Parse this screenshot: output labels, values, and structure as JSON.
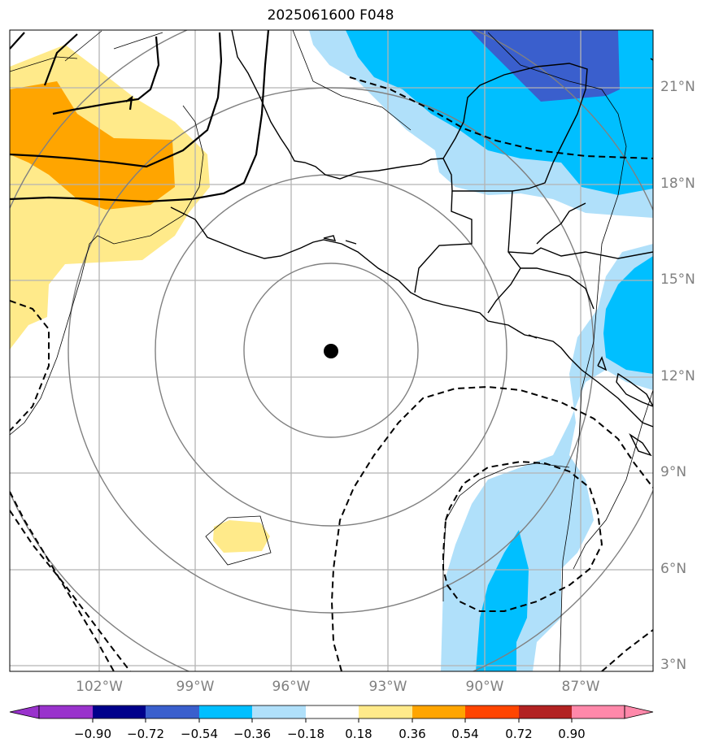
{
  "title": "2025061600 F048",
  "map": {
    "lat_labels": [
      "21°N",
      "18°N",
      "15°N",
      "12°N",
      "9°N",
      "6°N",
      "3°N"
    ],
    "lon_labels": [
      "102°W",
      "99°W",
      "96°W",
      "93°W",
      "90°W",
      "87°W"
    ],
    "lat_values": [
      21,
      18,
      15,
      12,
      9,
      6,
      3
    ],
    "lon_values": [
      -102,
      -99,
      -96,
      -93,
      -90,
      -87
    ],
    "center_marker": {
      "lon": -94.8,
      "lat": 12.8
    },
    "range_rings": 4
  },
  "colorbar": {
    "tick_labels": [
      "−0.90",
      "−0.72",
      "−0.54",
      "−0.36",
      "−0.18",
      "0.18",
      "0.36",
      "0.54",
      "0.72",
      "0.90"
    ],
    "colors": [
      "#9932cc",
      "#00008b",
      "#3a5fcd",
      "#00bfff",
      "#b0e0fa",
      "#ffffff",
      "#ffea8a",
      "#ffa500",
      "#ff4500",
      "#b22222",
      "#ff88aa"
    ]
  }
}
